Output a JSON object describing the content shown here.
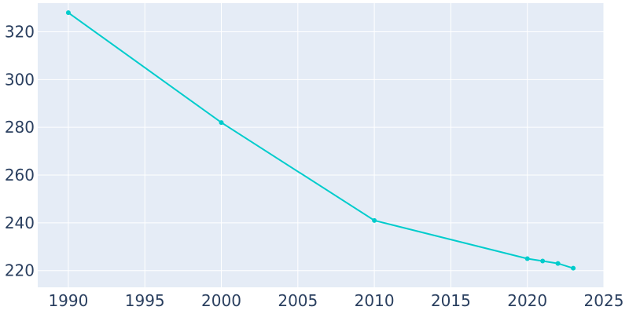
{
  "chart_data": {
    "type": "line",
    "title": "",
    "xlabel": "",
    "ylabel": "",
    "x": [
      1990,
      2000,
      2010,
      2020,
      2021,
      2022,
      2023
    ],
    "series": [
      {
        "values": [
          328,
          282,
          241,
          225,
          224,
          223,
          221
        ]
      }
    ],
    "xlim": [
      1988,
      2025
    ],
    "ylim": [
      213,
      332
    ],
    "x_ticks": [
      1990,
      1995,
      2000,
      2005,
      2010,
      2015,
      2020,
      2025
    ],
    "y_ticks": [
      220,
      240,
      260,
      280,
      300,
      320
    ],
    "grid": true,
    "legend": "none",
    "colors": {
      "line": "#00cccc",
      "plot_bg": "#e5ecf6",
      "grid": "#ffffff",
      "text": "#2a3f5f"
    }
  }
}
